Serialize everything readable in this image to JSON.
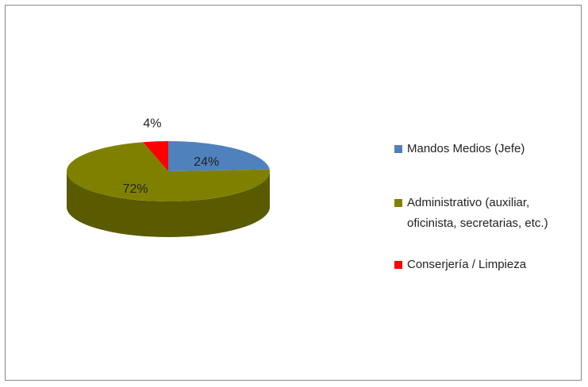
{
  "chart_data": {
    "type": "pie3d",
    "categories": [
      "Mandos Medios (Jefe)",
      "Administrativo (auxiliar, oficinista, secretarias, etc.)",
      "Conserjería / Limpieza"
    ],
    "values": [
      24,
      72,
      4
    ],
    "value_labels": [
      "24%",
      "72%",
      "4%"
    ],
    "colors": [
      "#4f81bd",
      "#808000",
      "#ff0000"
    ],
    "legend": "right"
  }
}
